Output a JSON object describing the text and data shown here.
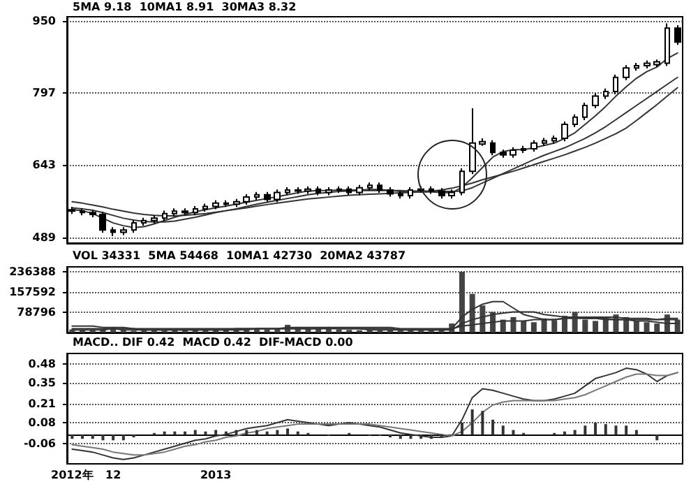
{
  "chart_data": [
    {
      "type": "candlestick",
      "annotations": [
        "5MA 9.18  10MA1 8.91  30MA3 8.32"
      ],
      "tick_labels": "y",
      "grid": "y",
      "marker": "none",
      "categories": [
        null,
        null,
        null,
        null,
        null,
        null,
        null,
        null,
        null,
        null,
        null,
        null,
        null,
        null,
        null,
        null,
        null,
        null,
        null,
        null,
        null,
        null,
        null,
        null,
        null,
        null,
        null,
        null,
        null,
        null,
        null,
        null,
        null,
        null,
        null,
        null,
        null,
        null,
        null,
        null,
        null,
        null,
        null,
        null,
        null,
        null,
        null,
        null,
        null,
        null,
        null,
        null,
        null,
        null,
        null,
        null,
        null,
        null,
        null,
        null
      ],
      "ylim": [
        477,
        959
      ],
      "yticks": [
        489,
        643,
        797,
        950
      ],
      "color": "#000000",
      "ohlc": [
        [
          548,
          554,
          539,
          545
        ],
        [
          545,
          551,
          536,
          542
        ],
        [
          542,
          548,
          532,
          538
        ],
        [
          538,
          544,
          499,
          505
        ],
        [
          505,
          511,
          492,
          500
        ],
        [
          500,
          511,
          494,
          505
        ],
        [
          505,
          526,
          499,
          520
        ],
        [
          520,
          531,
          514,
          525
        ],
        [
          525,
          536,
          519,
          530
        ],
        [
          530,
          546,
          524,
          540
        ],
        [
          540,
          551,
          534,
          545
        ],
        [
          545,
          551,
          536,
          542
        ],
        [
          542,
          556,
          536,
          550
        ],
        [
          550,
          561,
          544,
          555
        ],
        [
          555,
          568,
          549,
          562
        ],
        [
          562,
          568,
          554,
          560
        ],
        [
          560,
          571,
          554,
          565
        ],
        [
          565,
          581,
          559,
          575
        ],
        [
          575,
          586,
          569,
          580
        ],
        [
          580,
          586,
          564,
          570
        ],
        [
          570,
          591,
          564,
          585
        ],
        [
          585,
          596,
          579,
          590
        ],
        [
          590,
          596,
          582,
          588
        ],
        [
          588,
          598,
          582,
          592
        ],
        [
          592,
          598,
          579,
          585
        ],
        [
          585,
          596,
          579,
          590
        ],
        [
          590,
          598,
          584,
          592
        ],
        [
          592,
          598,
          579,
          585
        ],
        [
          585,
          601,
          579,
          595
        ],
        [
          595,
          606,
          589,
          600
        ],
        [
          600,
          606,
          584,
          590
        ],
        [
          590,
          596,
          576,
          582
        ],
        [
          582,
          588,
          572,
          578
        ],
        [
          578,
          596,
          572,
          590
        ],
        [
          590,
          598,
          584,
          592
        ],
        [
          592,
          598,
          582,
          588
        ],
        [
          588,
          594,
          572,
          578
        ],
        [
          578,
          591,
          572,
          585
        ],
        [
          585,
          636,
          579,
          630
        ],
        [
          630,
          764,
          624,
          690
        ],
        [
          688,
          700,
          684,
          693
        ],
        [
          690,
          696,
          664,
          670
        ],
        [
          670,
          676,
          659,
          665
        ],
        [
          665,
          681,
          659,
          675
        ],
        [
          675,
          684,
          669,
          678
        ],
        [
          678,
          696,
          672,
          690
        ],
        [
          690,
          701,
          684,
          695
        ],
        [
          695,
          706,
          689,
          700
        ],
        [
          700,
          736,
          694,
          730
        ],
        [
          730,
          751,
          724,
          745
        ],
        [
          745,
          776,
          739,
          770
        ],
        [
          770,
          796,
          764,
          790
        ],
        [
          790,
          806,
          784,
          800
        ],
        [
          800,
          836,
          794,
          830
        ],
        [
          830,
          856,
          824,
          850
        ],
        [
          850,
          861,
          844,
          855
        ],
        [
          855,
          866,
          849,
          860
        ],
        [
          857,
          868,
          852,
          863
        ],
        [
          860,
          945,
          854,
          935
        ],
        [
          935,
          941,
          899,
          905
        ]
      ],
      "series": [
        {
          "type": "line",
          "color": "#333333",
          "values": [
            548,
            546,
            540,
            530,
            520,
            514,
            510,
            512,
            518,
            525,
            532,
            538,
            544,
            548,
            552,
            556,
            560,
            564,
            568,
            572,
            576,
            580,
            584,
            588,
            589,
            589,
            590,
            590,
            590,
            591,
            591,
            589,
            587,
            586,
            586,
            586,
            585,
            584,
            596,
            616,
            638,
            660,
            672,
            676,
            676,
            680,
            685,
            690,
            700,
            712,
            730,
            748,
            768,
            790,
            810,
            828,
            842,
            852,
            870,
            882
          ]
        },
        {
          "type": "line",
          "color": "#333333",
          "values": [
            552,
            550,
            547,
            542,
            536,
            530,
            526,
            523,
            522,
            522,
            524,
            528,
            532,
            537,
            542,
            546,
            550,
            555,
            560,
            564,
            568,
            572,
            576,
            580,
            583,
            585,
            587,
            588,
            589,
            589,
            589,
            589,
            589,
            588,
            588,
            588,
            587,
            587,
            588,
            595,
            605,
            615,
            625,
            635,
            645,
            655,
            664,
            672,
            680,
            690,
            700,
            712,
            725,
            740,
            755,
            770,
            785,
            800,
            815,
            830
          ]
        },
        {
          "type": "line",
          "color": "#333333",
          "values": [
            565,
            562,
            558,
            554,
            549,
            545,
            541,
            538,
            536,
            535,
            535,
            536,
            538,
            540,
            543,
            546,
            549,
            552,
            556,
            559,
            562,
            565,
            568,
            571,
            573,
            575,
            577,
            579,
            580,
            581,
            582,
            583,
            584,
            585,
            586,
            588,
            590,
            594,
            599,
            605,
            612,
            618,
            624,
            630,
            637,
            644,
            651,
            658,
            665,
            673,
            681,
            690,
            700,
            710,
            722,
            738,
            755,
            772,
            790,
            808
          ]
        }
      ]
    },
    {
      "type": "bar",
      "annotations": [
        "VOL 34331  5MA 54468  10MA1 42730  20MA2 43787"
      ],
      "tick_labels": "y",
      "grid": "y",
      "marker": "none",
      "categories": [
        null,
        null,
        null,
        null,
        null,
        null,
        null,
        null,
        null,
        null,
        null,
        null,
        null,
        null,
        null,
        null,
        null,
        null,
        null,
        null,
        null,
        null,
        null,
        null,
        null,
        null,
        null,
        null,
        null,
        null,
        null,
        null,
        null,
        null,
        null,
        null,
        null,
        null,
        null,
        null,
        null,
        null,
        null,
        null,
        null,
        null,
        null,
        null,
        null,
        null,
        null,
        null,
        null,
        null,
        null,
        null,
        null,
        null,
        null,
        null
      ],
      "ylim": [
        0,
        255000
      ],
      "yticks": [
        78796,
        157592,
        236388
      ],
      "color": "#444444",
      "values": [
        12000,
        10000,
        9000,
        15000,
        18000,
        8000,
        7000,
        9000,
        12000,
        8000,
        9000,
        10000,
        9000,
        12000,
        10000,
        14000,
        12000,
        16000,
        14000,
        12000,
        15000,
        30000,
        22000,
        14000,
        18000,
        15000,
        12000,
        10000,
        9000,
        10000,
        8000,
        9000,
        8000,
        9000,
        10000,
        12000,
        15000,
        35000,
        236000,
        150000,
        105000,
        80000,
        50000,
        60000,
        45000,
        40000,
        55000,
        48000,
        65000,
        80000,
        50000,
        45000,
        55000,
        70000,
        60000,
        45000,
        40000,
        35000,
        70000,
        50000
      ],
      "series": [
        {
          "type": "line",
          "color": "#333333",
          "values": [
            10000,
            10000,
            10000,
            10000,
            15000,
            10000,
            10000,
            10000,
            10000,
            10000,
            10000,
            10000,
            10000,
            10000,
            10000,
            10000,
            15000,
            15000,
            15000,
            15000,
            15000,
            20000,
            20000,
            20000,
            20000,
            20000,
            15000,
            15000,
            15000,
            10000,
            10000,
            10000,
            10000,
            10000,
            10000,
            10000,
            10000,
            15000,
            60000,
            90000,
            110000,
            120000,
            120000,
            95000,
            70000,
            60000,
            50000,
            50000,
            55000,
            60000,
            60000,
            60000,
            60000,
            60000,
            55000,
            55000,
            55000,
            50000,
            55000,
            55000
          ]
        },
        {
          "type": "line",
          "color": "#333333",
          "values": [
            15000,
            15000,
            15000,
            15000,
            15000,
            15000,
            15000,
            10000,
            10000,
            10000,
            10000,
            10000,
            10000,
            10000,
            10000,
            10000,
            10000,
            10000,
            15000,
            15000,
            15000,
            15000,
            15000,
            15000,
            15000,
            15000,
            15000,
            15000,
            15000,
            15000,
            15000,
            15000,
            10000,
            10000,
            10000,
            10000,
            10000,
            10000,
            35000,
            50000,
            60000,
            70000,
            75000,
            80000,
            80000,
            80000,
            70000,
            65000,
            60000,
            60000,
            55000,
            55000,
            50000,
            50000,
            50000,
            45000,
            45000,
            40000,
            35000,
            35000
          ]
        },
        {
          "type": "line",
          "color": "#333333",
          "values": [
            25000,
            25000,
            25000,
            20000,
            20000,
            20000,
            15000,
            15000,
            15000,
            15000,
            15000,
            15000,
            15000,
            15000,
            15000,
            15000,
            15000,
            15000,
            15000,
            15000,
            15000,
            15000,
            15000,
            15000,
            15000,
            20000,
            20000,
            20000,
            20000,
            20000,
            20000,
            20000,
            15000,
            15000,
            15000,
            15000,
            15000,
            15000,
            25000,
            30000,
            35000,
            40000,
            45000,
            45000,
            45000,
            50000,
            50000,
            50000,
            55000,
            55000,
            55000,
            55000,
            55000,
            50000,
            50000,
            50000,
            50000,
            50000,
            50000,
            50000
          ]
        }
      ]
    },
    {
      "type": "line",
      "annotations": [
        "MACD.. DIF 0.42  MACD 0.42  DIF-MACD 0.00"
      ],
      "grid": "y",
      "marker": "none",
      "categories": [
        "2012年",
        null,
        null,
        null,
        "12",
        null,
        null,
        null,
        null,
        null,
        null,
        null,
        null,
        null,
        "2013",
        null,
        null,
        null,
        null,
        null,
        null,
        null,
        null,
        null,
        null,
        null,
        null,
        null,
        null,
        null,
        null,
        null,
        null,
        null,
        null,
        null,
        null,
        null,
        null,
        null,
        null,
        null,
        null,
        null,
        null,
        null,
        null,
        null,
        null,
        null,
        null,
        null,
        null,
        null,
        null,
        null,
        null,
        null,
        null,
        null
      ],
      "ylim": [
        -0.2,
        0.55
      ],
      "yticks": [
        -0.06,
        0.08,
        0.21,
        0.35,
        0.48
      ],
      "series": [
        {
          "type": "line",
          "color": "#333333",
          "values": [
            -0.1,
            -0.11,
            -0.12,
            -0.14,
            -0.16,
            -0.17,
            -0.16,
            -0.14,
            -0.12,
            -0.1,
            -0.08,
            -0.06,
            -0.04,
            -0.03,
            -0.01,
            0.0,
            0.02,
            0.04,
            0.05,
            0.06,
            0.08,
            0.1,
            0.09,
            0.08,
            0.07,
            0.06,
            0.07,
            0.08,
            0.07,
            0.06,
            0.05,
            0.03,
            0.01,
            0.0,
            -0.01,
            -0.02,
            -0.02,
            -0.01,
            0.1,
            0.25,
            0.31,
            0.3,
            0.28,
            0.26,
            0.24,
            0.23,
            0.23,
            0.24,
            0.26,
            0.28,
            0.33,
            0.38,
            0.4,
            0.42,
            0.45,
            0.44,
            0.41,
            0.36,
            0.4,
            0.42
          ]
        },
        {
          "type": "line",
          "color": "#777777",
          "values": [
            -0.07,
            -0.08,
            -0.09,
            -0.1,
            -0.12,
            -0.13,
            -0.14,
            -0.14,
            -0.13,
            -0.12,
            -0.1,
            -0.08,
            -0.07,
            -0.05,
            -0.04,
            -0.02,
            -0.01,
            0.01,
            0.02,
            0.04,
            0.05,
            0.06,
            0.07,
            0.07,
            0.07,
            0.07,
            0.07,
            0.07,
            0.07,
            0.07,
            0.06,
            0.05,
            0.04,
            0.03,
            0.02,
            0.01,
            0.0,
            -0.01,
            0.02,
            0.08,
            0.15,
            0.2,
            0.22,
            0.23,
            0.23,
            0.23,
            0.23,
            0.23,
            0.24,
            0.25,
            0.27,
            0.3,
            0.33,
            0.36,
            0.39,
            0.41,
            0.41,
            0.4,
            0.4,
            0.42
          ]
        },
        {
          "type": "bar",
          "color": "#333333",
          "values": [
            -0.03,
            -0.03,
            -0.03,
            -0.04,
            -0.04,
            -0.04,
            -0.02,
            0.0,
            0.01,
            0.02,
            0.02,
            0.02,
            0.03,
            0.02,
            0.03,
            0.02,
            0.03,
            0.03,
            0.03,
            0.02,
            0.03,
            0.04,
            0.02,
            0.01,
            0.0,
            -0.01,
            0.0,
            0.01,
            0.0,
            -0.01,
            -0.01,
            -0.02,
            -0.03,
            -0.03,
            -0.03,
            -0.03,
            -0.02,
            0.0,
            0.08,
            0.17,
            0.16,
            0.1,
            0.06,
            0.03,
            0.01,
            0.0,
            0.0,
            0.01,
            0.02,
            0.03,
            0.06,
            0.08,
            0.07,
            0.06,
            0.06,
            0.03,
            0.0,
            -0.04,
            0.0,
            0.0
          ]
        }
      ]
    }
  ]
}
